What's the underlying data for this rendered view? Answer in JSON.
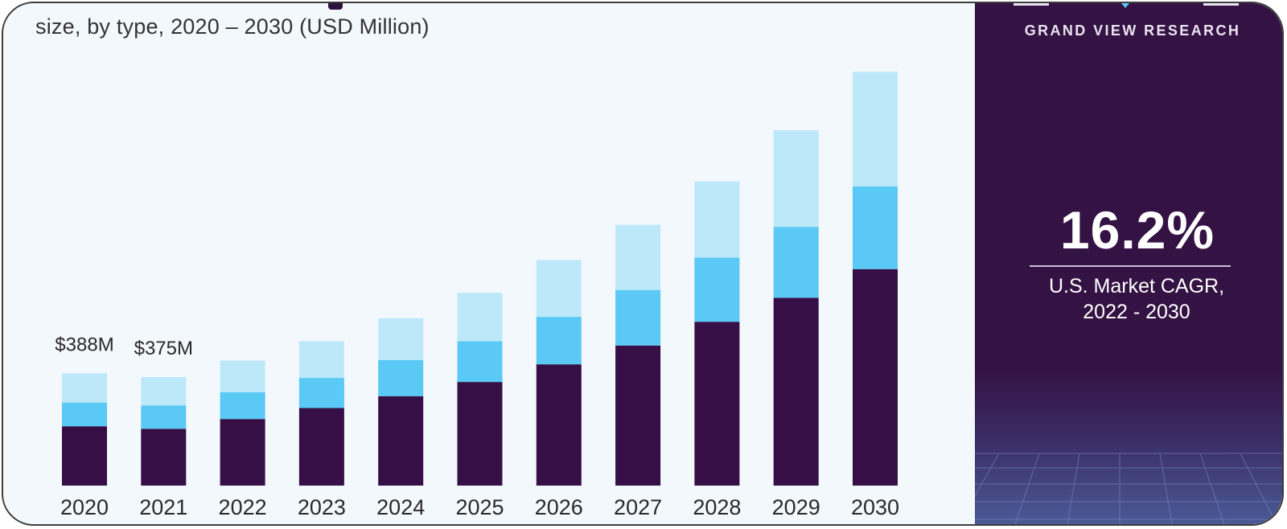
{
  "subtitle": "size, by type, 2020 – 2030 (USD Million)",
  "brand": "GRAND VIEW RESEARCH",
  "cagr": {
    "value": "16.2%",
    "label_line1": "U.S. Market CAGR,",
    "label_line2": "2022 - 2030"
  },
  "colors": {
    "series_dark": "#350f45",
    "series_mid": "#5bc9f5",
    "series_light": "#bde8f9",
    "panel_bg": "#341243",
    "chart_bg": "#f3f8fc"
  },
  "chart_data": {
    "type": "bar",
    "stacked": true,
    "categories": [
      "2020",
      "2021",
      "2022",
      "2023",
      "2024",
      "2025",
      "2026",
      "2027",
      "2028",
      "2029",
      "2030"
    ],
    "series": [
      {
        "values": [
          205,
          196,
          230,
          268,
          309,
          358,
          419,
          484,
          566,
          649,
          748
        ]
      },
      {
        "values": [
          82,
          81,
          93,
          104,
          125,
          141,
          164,
          192,
          222,
          245,
          286
        ]
      },
      {
        "values": [
          101,
          98,
          109,
          127,
          144,
          167,
          196,
          225,
          263,
          334,
          396
        ]
      }
    ],
    "annotations": [
      {
        "category": "2020",
        "text": "$388M"
      },
      {
        "category": "2021",
        "text": "$375M"
      }
    ],
    "ylim": [
      0,
      1500
    ],
    "grid": false,
    "legend": "none"
  }
}
